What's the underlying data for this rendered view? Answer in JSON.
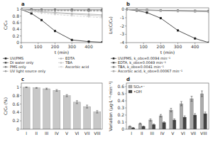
{
  "chart_data": [
    {
      "type": "line",
      "title": "a",
      "xlabel": "t (min)",
      "ylabel": "C/C₀",
      "x": [
        0,
        60,
        120,
        200,
        300,
        400,
        480
      ],
      "xlim": [
        0,
        480
      ],
      "xticks": [
        0,
        100,
        200,
        300,
        400
      ],
      "ylim": [
        0.0,
        1.05
      ],
      "yticks": [
        0,
        0.2,
        0.4,
        0.6,
        0.8,
        1
      ],
      "legend": "bottom",
      "series": [
        {
          "name": "UV/PMS",
          "color": "#222222",
          "marker": "square",
          "line_style": "solid",
          "values": [
            1.0,
            0.88,
            0.68,
            0.35,
            0.08,
            0.03,
            0.01
          ]
        },
        {
          "name": "DI water only",
          "color": "#555555",
          "marker": "square",
          "line_style": "solid",
          "values": [
            1.0,
            1.0,
            0.99,
            0.99,
            0.99,
            0.99,
            0.99
          ]
        },
        {
          "name": "PMS only",
          "color": "#777777",
          "marker": "circle",
          "line_style": "dashed",
          "values": [
            1.0,
            0.99,
            0.99,
            0.98,
            0.98,
            0.97,
            0.97
          ]
        },
        {
          "name": "UV light source only",
          "color": "#999999",
          "marker": "circle",
          "line_style": "dashed",
          "values": [
            1.0,
            0.98,
            0.97,
            0.96,
            0.96,
            0.95,
            0.95
          ]
        },
        {
          "name": "EDTA",
          "color": "#aaaaaa",
          "marker": "triangle-up",
          "line_style": "solid",
          "values": [
            1.0,
            0.97,
            0.94,
            0.91,
            0.88,
            0.86,
            0.84
          ]
        },
        {
          "name": "TBA",
          "color": "#bbbbbb",
          "marker": "triangle-up",
          "line_style": "solid",
          "values": [
            1.0,
            0.96,
            0.92,
            0.89,
            0.86,
            0.83,
            0.8
          ]
        },
        {
          "name": "Ascorbic acid",
          "color": "#cccccc",
          "marker": "triangle-down",
          "line_style": "dashed",
          "values": [
            1.0,
            0.94,
            0.89,
            0.85,
            0.81,
            0.78,
            0.75
          ]
        }
      ]
    },
    {
      "type": "line",
      "title": "b",
      "xlabel": "t (min)",
      "ylabel": "Ln(C/C₀)",
      "x": [
        0,
        60,
        120,
        200,
        300,
        400,
        480
      ],
      "xlim": [
        0,
        480
      ],
      "xticks": [
        0,
        100,
        200,
        300,
        400
      ],
      "ylim": [
        -4.0,
        0.2
      ],
      "yticks": [
        -4,
        -3,
        -2,
        -1,
        0
      ],
      "legend": "bottom",
      "series": [
        {
          "name": "UV/PMS, k_obs=0.0094 min⁻¹",
          "color": "#222222",
          "marker": "square",
          "line_style": "solid",
          "values": [
            0.0,
            -0.13,
            -0.38,
            -1.05,
            -2.53,
            -3.5,
            -4.0
          ]
        },
        {
          "name": "EDTA, k_obs=0.0049 min⁻¹",
          "color": "#555555",
          "marker": "square",
          "line_style": "solid",
          "values": [
            0.0,
            -0.03,
            -0.06,
            -0.095,
            -0.128,
            -0.155,
            -0.175
          ]
        },
        {
          "name": "TBA, k_obs=0.0041 min⁻¹",
          "color": "#888888",
          "marker": "square",
          "line_style": "solid",
          "values": [
            0.0,
            -0.04,
            -0.085,
            -0.117,
            -0.151,
            -0.187,
            -0.223
          ]
        },
        {
          "name": "Ascorbic acid, k_obs=0.00067 min⁻¹",
          "color": "#aaaaaa",
          "marker": "square",
          "line_style": "solid",
          "values": [
            0.0,
            -0.06,
            -0.117,
            -0.163,
            -0.21,
            -0.248,
            -0.288
          ]
        }
      ]
    },
    {
      "type": "bar",
      "title": "c",
      "ylabel": "C/C₀ (%)",
      "categories": [
        "I",
        "II",
        "III",
        "IV",
        "V",
        "VI",
        "VII",
        "VIII"
      ],
      "values": [
        1.0,
        0.985,
        0.965,
        0.925,
        0.8,
        0.645,
        0.54,
        0.415
      ],
      "errors": [
        0.008,
        0.008,
        0.015,
        0.02,
        0.025,
        0.035,
        0.035,
        0.028
      ],
      "color": "#c8c8c8",
      "ylim": [
        0.0,
        1.1
      ],
      "yticks": [
        0,
        0.2,
        0.4,
        0.6,
        0.8,
        1
      ]
    },
    {
      "type": "bar",
      "title": "d",
      "ylabel": "Variation (μg·L⁻¹·min⁻¹)",
      "categories": [
        "I",
        "II",
        "III",
        "IV",
        "V",
        "VI",
        "VII",
        "VIII"
      ],
      "series": [
        {
          "name": "SO₄•⁻",
          "color": "#aaaaaa",
          "values": [
            0.04,
            0.08,
            0.13,
            0.19,
            0.27,
            0.36,
            0.43,
            0.5
          ],
          "errors": [
            0.008,
            0.008,
            0.015,
            0.018,
            0.025,
            0.03,
            0.035,
            0.04
          ]
        },
        {
          "name": "•OH",
          "color": "#444444",
          "values": [
            0.02,
            0.04,
            0.065,
            0.095,
            0.13,
            0.17,
            0.2,
            0.22
          ],
          "errors": [
            0.004,
            0.005,
            0.008,
            0.01,
            0.015,
            0.018,
            0.02,
            0.022
          ]
        }
      ],
      "ylim": [
        0,
        0.65
      ],
      "yticks": [
        0,
        0.1,
        0.2,
        0.3,
        0.4,
        0.5,
        0.6
      ],
      "legend": "top-left"
    }
  ]
}
